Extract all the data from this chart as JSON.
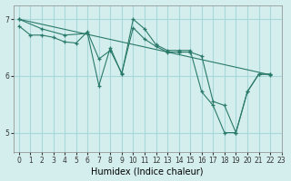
{
  "xlabel": "Humidex (Indice chaleur)",
  "bg_color": "#d4eeee",
  "grid_color": "#a8d8d8",
  "line_color": "#2a7a6a",
  "xlim": [
    -0.5,
    23
  ],
  "ylim": [
    4.65,
    7.25
  ],
  "yticks": [
    5,
    6,
    7
  ],
  "xticks": [
    0,
    1,
    2,
    3,
    4,
    5,
    6,
    7,
    8,
    9,
    10,
    11,
    12,
    13,
    14,
    15,
    16,
    17,
    18,
    19,
    20,
    21,
    22,
    23
  ],
  "series": [
    {
      "x": [
        0,
        22
      ],
      "y": [
        7.0,
        6.02
      ]
    },
    {
      "x": [
        0,
        2,
        4,
        6,
        7,
        8,
        9,
        10,
        11,
        12,
        13,
        14,
        15,
        16,
        17,
        18,
        19,
        20,
        21,
        22
      ],
      "y": [
        7.0,
        6.83,
        6.72,
        6.75,
        5.83,
        6.5,
        6.03,
        7.0,
        6.83,
        6.55,
        6.45,
        6.45,
        6.45,
        5.72,
        5.48,
        5.0,
        5.0,
        5.72,
        6.03,
        6.03
      ]
    },
    {
      "x": [
        0,
        1,
        2,
        3,
        4,
        5,
        6,
        7,
        8,
        9,
        10,
        11,
        12,
        13,
        14,
        15,
        16,
        17,
        18,
        19,
        20,
        21,
        22
      ],
      "y": [
        6.88,
        6.72,
        6.72,
        6.68,
        6.6,
        6.58,
        6.78,
        6.3,
        6.45,
        6.05,
        6.85,
        6.65,
        6.52,
        6.42,
        6.42,
        6.42,
        6.35,
        5.55,
        5.48,
        5.0,
        5.72,
        6.03,
        6.03
      ]
    }
  ]
}
